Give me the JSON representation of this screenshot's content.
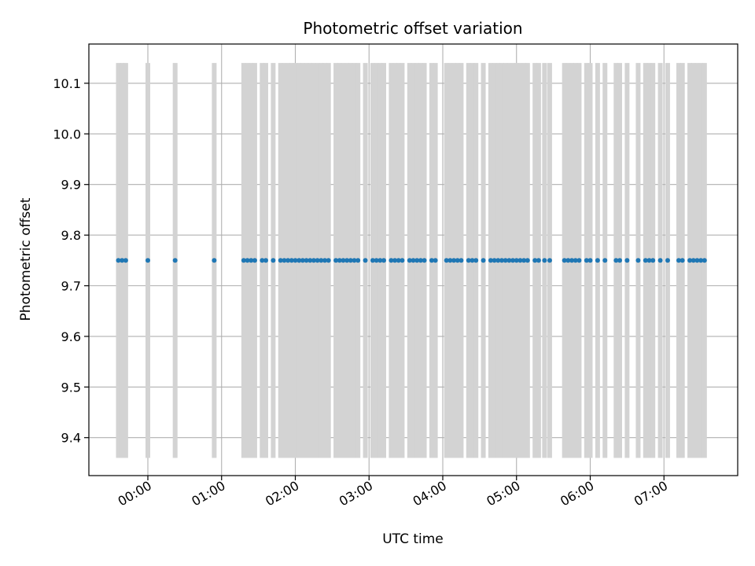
{
  "chart_data": {
    "type": "scatter",
    "title": "Photometric offset variation",
    "xlabel": "UTC time",
    "ylabel": "Photometric offset",
    "x_unit": "hours UTC",
    "xlim": [
      -0.8,
      8.0
    ],
    "ylim": [
      9.325,
      10.1775
    ],
    "x_ticks": [
      {
        "value": 0,
        "label": "00:00"
      },
      {
        "value": 1,
        "label": "01:00"
      },
      {
        "value": 2,
        "label": "02:00"
      },
      {
        "value": 3,
        "label": "03:00"
      },
      {
        "value": 4,
        "label": "04:00"
      },
      {
        "value": 5,
        "label": "05:00"
      },
      {
        "value": 6,
        "label": "06:00"
      },
      {
        "value": 7,
        "label": "07:00"
      }
    ],
    "y_ticks": [
      {
        "value": 9.4,
        "label": "9.4"
      },
      {
        "value": 9.5,
        "label": "9.5"
      },
      {
        "value": 9.6,
        "label": "9.6"
      },
      {
        "value": 9.7,
        "label": "9.7"
      },
      {
        "value": 9.8,
        "label": "9.8"
      },
      {
        "value": 9.9,
        "label": "9.9"
      },
      {
        "value": 10.0,
        "label": "10.0"
      },
      {
        "value": 10.1,
        "label": "10.1"
      }
    ],
    "grid": true,
    "point_color": "#1f77b4",
    "errorbar_color": "#d3d3d3",
    "y_value": 9.75,
    "y_error": 0.39,
    "x": [
      -0.4,
      -0.35,
      -0.3,
      0.0,
      0.37,
      0.9,
      1.3,
      1.35,
      1.4,
      1.45,
      1.55,
      1.6,
      1.7,
      1.8,
      1.85,
      1.9,
      1.95,
      2.0,
      2.05,
      2.1,
      2.15,
      2.2,
      2.25,
      2.3,
      2.35,
      2.4,
      2.45,
      2.55,
      2.6,
      2.65,
      2.7,
      2.75,
      2.8,
      2.85,
      2.95,
      3.05,
      3.1,
      3.15,
      3.2,
      3.3,
      3.35,
      3.4,
      3.45,
      3.55,
      3.6,
      3.65,
      3.7,
      3.75,
      3.85,
      3.9,
      4.05,
      4.1,
      4.15,
      4.2,
      4.25,
      4.35,
      4.4,
      4.45,
      4.55,
      4.65,
      4.7,
      4.75,
      4.8,
      4.85,
      4.9,
      4.95,
      5.0,
      5.05,
      5.1,
      5.15,
      5.25,
      5.3,
      5.38,
      5.45,
      5.65,
      5.7,
      5.75,
      5.8,
      5.85,
      5.95,
      6.0,
      6.1,
      6.2,
      6.35,
      6.4,
      6.5,
      6.65,
      6.75,
      6.8,
      6.85,
      6.95,
      7.05,
      7.2,
      7.25,
      7.35,
      7.4,
      7.45,
      7.5,
      7.55
    ]
  }
}
